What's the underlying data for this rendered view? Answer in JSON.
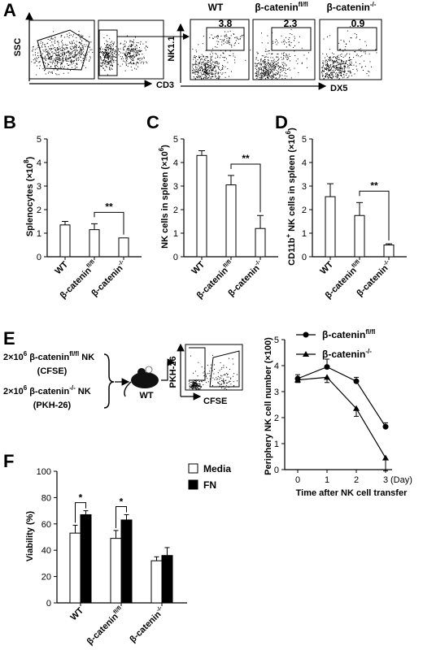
{
  "panel_labels": {
    "A": "A",
    "B": "B",
    "C": "C",
    "D": "D",
    "E": "E",
    "F": "F"
  },
  "panel_a": {
    "gate_y_axis": "SSC",
    "gate_x_axis": "CD3",
    "nk_y_axis": "NK1.1",
    "nk_x_axis": "DX5",
    "plots": [
      {
        "title": "WT",
        "percent": "3.8"
      },
      {
        "title": "β-catenin",
        "title_sup": "fl/fl",
        "percent": "2.3"
      },
      {
        "title": "β-catenin",
        "title_sup": "-/-",
        "percent": "0.9"
      }
    ]
  },
  "panel_e_diagram": {
    "line1_main": "2×10",
    "line1_exp": "6",
    "line1_rest": " β-catenin",
    "line1_sup": "fl/fl",
    "line1_end": " NK",
    "line1_sub": "(CFSE)",
    "line2_main": "2×10",
    "line2_exp": "6",
    "line2_rest": " β-catenin",
    "line2_sup": "-/-",
    "line2_end": " NK",
    "line2_sub": "(PKH-26)",
    "mouse_label": "WT",
    "y_axis": "PKH-26",
    "x_axis": "CFSE"
  },
  "chart_data": [
    {
      "id": "B",
      "type": "bar",
      "ylabel": "Splenocytes (×10",
      "ylabel_exp": "8",
      "ylabel_end": ")",
      "ylim": [
        0,
        5
      ],
      "yticks": [
        "0",
        "1",
        "2",
        "3",
        "4",
        "5"
      ],
      "categories": [
        "WT",
        "β-catenin",
        "β-catenin"
      ],
      "category_sups": [
        "",
        "fl/fl",
        "-/-"
      ],
      "values": [
        1.35,
        1.15,
        0.8
      ],
      "errors": [
        0.15,
        0.25,
        0.0
      ],
      "significance": "**"
    },
    {
      "id": "C",
      "type": "bar",
      "ylabel": "NK cells in spleen (×10",
      "ylabel_exp": "6",
      "ylabel_end": ")",
      "ylim": [
        0,
        5
      ],
      "yticks": [
        "0",
        "1",
        "2",
        "3",
        "4",
        "5"
      ],
      "categories": [
        "WT",
        "β-catenin",
        "β-catenin"
      ],
      "category_sups": [
        "",
        "fl/fl",
        "-/-"
      ],
      "values": [
        4.3,
        3.05,
        1.2
      ],
      "errors": [
        0.2,
        0.4,
        0.55
      ],
      "significance": "**"
    },
    {
      "id": "D",
      "type": "bar",
      "ylabel": "CD11b",
      "ylabel_sup1": "+",
      "ylabel_mid": " NK cells in spleen (×10",
      "ylabel_exp": "6",
      "ylabel_end": ")",
      "ylim": [
        0,
        5
      ],
      "yticks": [
        "0",
        "1",
        "2",
        "3",
        "4",
        "5"
      ],
      "categories": [
        "WT",
        "β-catenin",
        "β-catenin"
      ],
      "category_sups": [
        "",
        "fl/fl",
        "-/-"
      ],
      "values": [
        2.55,
        1.75,
        0.5
      ],
      "errors": [
        0.55,
        0.55,
        0.05
      ],
      "significance": "**"
    },
    {
      "id": "E",
      "type": "line",
      "ylabel": "Periphery NK cell number (×100)",
      "xlabel": "Time after NK cell transfer",
      "x_unit": "(Day)",
      "ylim": [
        0,
        5
      ],
      "yticks": [
        "0",
        "1",
        "2",
        "3",
        "4",
        "5"
      ],
      "x": [
        0,
        1,
        2,
        3
      ],
      "xticks": [
        "0",
        "1",
        "2",
        "3"
      ],
      "series": [
        {
          "name": "β-catenin",
          "name_sup": "fl/fl",
          "marker": "circle",
          "values": [
            3.5,
            3.95,
            3.4,
            1.65
          ],
          "errors": [
            0.15,
            0.3,
            0.15,
            0.15
          ]
        },
        {
          "name": "β-catenin",
          "name_sup": "-/-",
          "marker": "triangle",
          "values": [
            3.45,
            3.55,
            2.35,
            0.45
          ],
          "errors": [
            0.1,
            0.2,
            0.3,
            0.5
          ]
        }
      ]
    },
    {
      "id": "F",
      "type": "bar",
      "ylabel": "Viability (%)",
      "ylim": [
        0,
        100
      ],
      "yticks": [
        "0",
        "20",
        "40",
        "60",
        "80",
        "100"
      ],
      "categories": [
        "WT",
        "β-catenin",
        "β-catenin"
      ],
      "category_sups": [
        "",
        "fl/fl",
        "-/-"
      ],
      "series": [
        {
          "name": "Media",
          "color": "#ffffff",
          "values": [
            53,
            49,
            32
          ],
          "errors": [
            6,
            6,
            3
          ]
        },
        {
          "name": "FN",
          "color": "#000000",
          "values": [
            67,
            63,
            36
          ],
          "errors": [
            3,
            4,
            6
          ]
        }
      ],
      "significance": [
        "*",
        "*",
        ""
      ]
    }
  ]
}
